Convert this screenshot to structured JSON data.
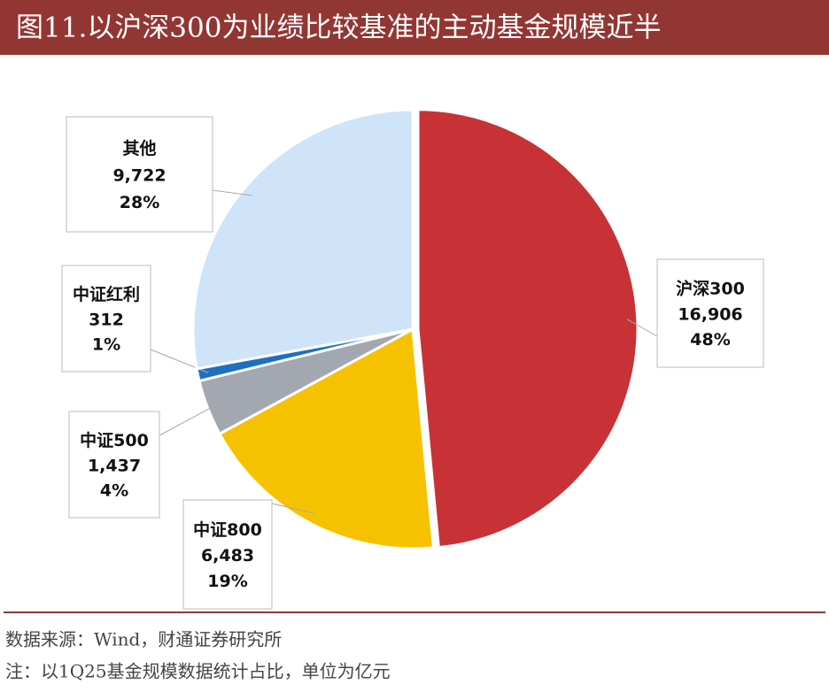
{
  "chart_data": {
    "type": "pie",
    "title": "图11.以沪深300为业绩比较基准的主动基金规模近半",
    "categories": [
      "沪深300",
      "中证800",
      "中证500",
      "中证红利",
      "其他"
    ],
    "values": [
      16906,
      6483,
      1437,
      312,
      9722
    ],
    "value_labels": [
      "16,906",
      "6,483",
      "1,437",
      "312",
      "9,722"
    ],
    "percent_labels": [
      "48%",
      "19%",
      "4%",
      "1%",
      "28%"
    ],
    "colors": [
      "#c83236",
      "#f6c200",
      "#a3a7b0",
      "#1f6fc0",
      "#cfe4f8"
    ],
    "source": "数据来源：Wind，财通证券研究所",
    "note": "注：以1Q25基金规模数据统计占比，单位为亿元"
  }
}
